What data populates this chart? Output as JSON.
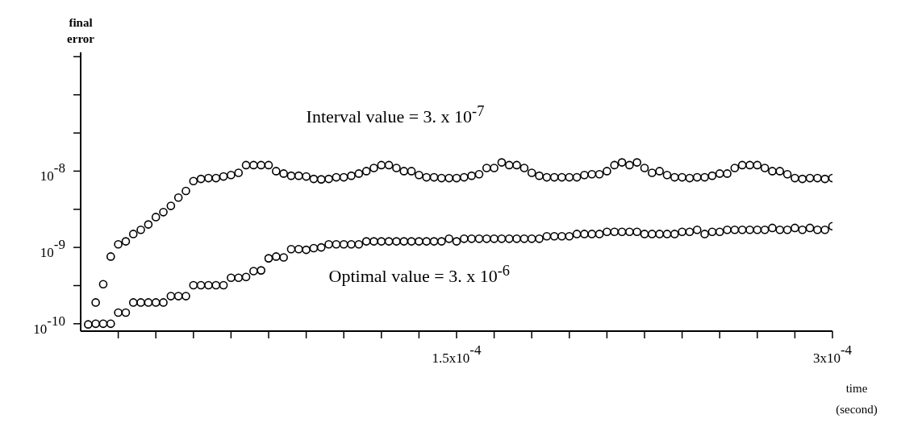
{
  "chart_data": {
    "type": "scatter",
    "xlabel": "time (second)",
    "ylabel": "final error",
    "log": "y",
    "marker": "circle",
    "xlim": [
      0,
      0.0003
    ],
    "xticks": [
      {
        "value": 1.5e-05,
        "label": null
      },
      {
        "value": 3e-05,
        "label": null
      },
      {
        "value": 4.5e-05,
        "label": null
      },
      {
        "value": 6e-05,
        "label": null
      },
      {
        "value": 7.5e-05,
        "label": null
      },
      {
        "value": 9e-05,
        "label": null
      },
      {
        "value": 0.000105,
        "label": null
      },
      {
        "value": 0.00012,
        "label": null
      },
      {
        "value": 0.000135,
        "label": null
      },
      {
        "value": 0.00015,
        "label": "1.5x10$^{-4}$"
      },
      {
        "value": 0.000165,
        "label": null
      },
      {
        "value": 0.00018,
        "label": null
      },
      {
        "value": 0.000195,
        "label": null
      },
      {
        "value": 0.00021,
        "label": null
      },
      {
        "value": 0.000225,
        "label": null
      },
      {
        "value": 0.00024,
        "label": null
      },
      {
        "value": 0.000255,
        "label": null
      },
      {
        "value": 0.00027,
        "label": null
      },
      {
        "value": 0.000285,
        "label": null
      },
      {
        "value": 0.0003,
        "label": "3x10$^{-4}$"
      }
    ],
    "ylim": [
      8e-11,
      3.6e-07
    ],
    "yticks": [
      {
        "value": 1e-10,
        "label": "10$^{-10}$"
      },
      {
        "value": 3.16e-10,
        "label": null
      },
      {
        "value": 1e-09,
        "label": "10$^{-9}$"
      },
      {
        "value": 3.16e-09,
        "label": null
      },
      {
        "value": 1e-08,
        "label": "10$^{-8}$"
      },
      {
        "value": 3.16e-08,
        "label": null
      },
      {
        "value": 1e-07,
        "label": null
      },
      {
        "value": 3.16e-07,
        "label": null
      }
    ],
    "x": [
      3e-06,
      6e-06,
      9e-06,
      1.2e-05,
      1.5e-05,
      1.8e-05,
      2.1e-05,
      2.4e-05,
      2.7e-05,
      3e-05,
      3.3e-05,
      3.6e-05,
      3.9e-05,
      4.2e-05,
      4.5e-05,
      4.8e-05,
      5.1e-05,
      5.4e-05,
      5.7e-05,
      6e-05,
      6.3e-05,
      6.6e-05,
      6.9e-05,
      7.2e-05,
      7.5e-05,
      7.8e-05,
      8.1e-05,
      8.4e-05,
      8.7e-05,
      9e-05,
      9.3e-05,
      9.6e-05,
      9.9e-05,
      0.000102,
      0.000105,
      0.000108,
      0.000111,
      0.000114,
      0.000117,
      0.00012,
      0.000123,
      0.000126,
      0.000129,
      0.000132,
      0.000135,
      0.000138,
      0.000141,
      0.000144,
      0.000147,
      0.00015,
      0.000153,
      0.000156,
      0.000159,
      0.000162,
      0.000165,
      0.000168,
      0.000171,
      0.000174,
      0.000177,
      0.00018,
      0.000183,
      0.000186,
      0.000189,
      0.000192,
      0.000195,
      0.000198,
      0.000201,
      0.000204,
      0.000207,
      0.00021,
      0.000213,
      0.000216,
      0.000219,
      0.000222,
      0.000225,
      0.000228,
      0.000231,
      0.000234,
      0.000237,
      0.00024,
      0.000243,
      0.000246,
      0.000249,
      0.000252,
      0.000255,
      0.000258,
      0.000261,
      0.000264,
      0.000267,
      0.00027,
      0.000273,
      0.000276,
      0.000279,
      0.000282,
      0.000285,
      0.000288,
      0.000291,
      0.000294,
      0.000297,
      0.0003
    ],
    "series": [
      {
        "name": "Interval value = 3. x 10$^{-7}$",
        "color": "#000000",
        "values": [
          null,
          1.9e-10,
          3.3e-10,
          7.6e-10,
          1.1e-09,
          1.2e-09,
          1.5e-09,
          1.7e-09,
          2e-09,
          2.5e-09,
          2.9e-09,
          3.5e-09,
          4.5e-09,
          5.5e-09,
          7.4e-09,
          7.9e-09,
          8.1e-09,
          8.1e-09,
          8.5e-09,
          8.9e-09,
          9.5e-09,
          1.2e-08,
          1.2e-08,
          1.2e-08,
          1.2e-08,
          1e-08,
          9.3e-09,
          8.7e-09,
          8.7e-09,
          8.5e-09,
          7.9e-09,
          7.8e-09,
          7.9e-09,
          8.3e-09,
          8.3e-09,
          8.7e-09,
          9.3e-09,
          1e-08,
          1.1e-08,
          1.2e-08,
          1.2e-08,
          1.1e-08,
          1e-08,
          1e-08,
          8.9e-09,
          8.3e-09,
          8.3e-09,
          8.1e-09,
          8.1e-09,
          8.1e-09,
          8.3e-09,
          8.7e-09,
          9.1e-09,
          1.1e-08,
          1.1e-08,
          1.3e-08,
          1.2e-08,
          1.2e-08,
          1.1e-08,
          9.5e-09,
          8.7e-09,
          8.3e-09,
          8.3e-09,
          8.3e-09,
          8.3e-09,
          8.3e-09,
          8.9e-09,
          9.1e-09,
          9.1e-09,
          1e-08,
          1.2e-08,
          1.3e-08,
          1.2e-08,
          1.3e-08,
          1.1e-08,
          9.5e-09,
          1e-08,
          8.9e-09,
          8.3e-09,
          8.3e-09,
          8.1e-09,
          8.3e-09,
          8.3e-09,
          8.7e-09,
          9.3e-09,
          9.3e-09,
          1.1e-08,
          1.2e-08,
          1.2e-08,
          1.2e-08,
          1.1e-08,
          1e-08,
          1e-08,
          9.1e-09,
          8.1e-09,
          7.9e-09,
          8.1e-09,
          8.1e-09,
          7.9e-09,
          8.1e-09
        ]
      },
      {
        "name": "Optimal value = 3. x 10$^{-6}$",
        "color": "#000000",
        "values": [
          9.8e-11,
          1e-10,
          1e-10,
          1e-10,
          1.4e-10,
          1.4e-10,
          1.9e-10,
          1.9e-10,
          1.9e-10,
          1.9e-10,
          1.9e-10,
          2.3e-10,
          2.3e-10,
          2.3e-10,
          3.2e-10,
          3.2e-10,
          3.2e-10,
          3.2e-10,
          3.2e-10,
          4e-10,
          4e-10,
          4.1e-10,
          4.9e-10,
          5e-10,
          7.2e-10,
          7.6e-10,
          7.4e-10,
          9.5e-10,
          9.5e-10,
          9.3e-10,
          9.8e-10,
          1e-09,
          1.1e-09,
          1.1e-09,
          1.1e-09,
          1.1e-09,
          1.1e-09,
          1.2e-09,
          1.2e-09,
          1.2e-09,
          1.2e-09,
          1.2e-09,
          1.2e-09,
          1.2e-09,
          1.2e-09,
          1.2e-09,
          1.2e-09,
          1.2e-09,
          1.3e-09,
          1.2e-09,
          1.3e-09,
          1.3e-09,
          1.3e-09,
          1.3e-09,
          1.3e-09,
          1.3e-09,
          1.3e-09,
          1.3e-09,
          1.3e-09,
          1.3e-09,
          1.3e-09,
          1.4e-09,
          1.4e-09,
          1.4e-09,
          1.4e-09,
          1.5e-09,
          1.5e-09,
          1.5e-09,
          1.5e-09,
          1.6e-09,
          1.6e-09,
          1.6e-09,
          1.6e-09,
          1.6e-09,
          1.5e-09,
          1.5e-09,
          1.5e-09,
          1.5e-09,
          1.5e-09,
          1.6e-09,
          1.6e-09,
          1.7e-09,
          1.5e-09,
          1.6e-09,
          1.6e-09,
          1.7e-09,
          1.7e-09,
          1.7e-09,
          1.7e-09,
          1.7e-09,
          1.7e-09,
          1.8e-09,
          1.7e-09,
          1.7e-09,
          1.8e-09,
          1.7e-09,
          1.8e-09,
          1.7e-09,
          1.7e-09,
          1.9e-09
        ]
      }
    ]
  }
}
